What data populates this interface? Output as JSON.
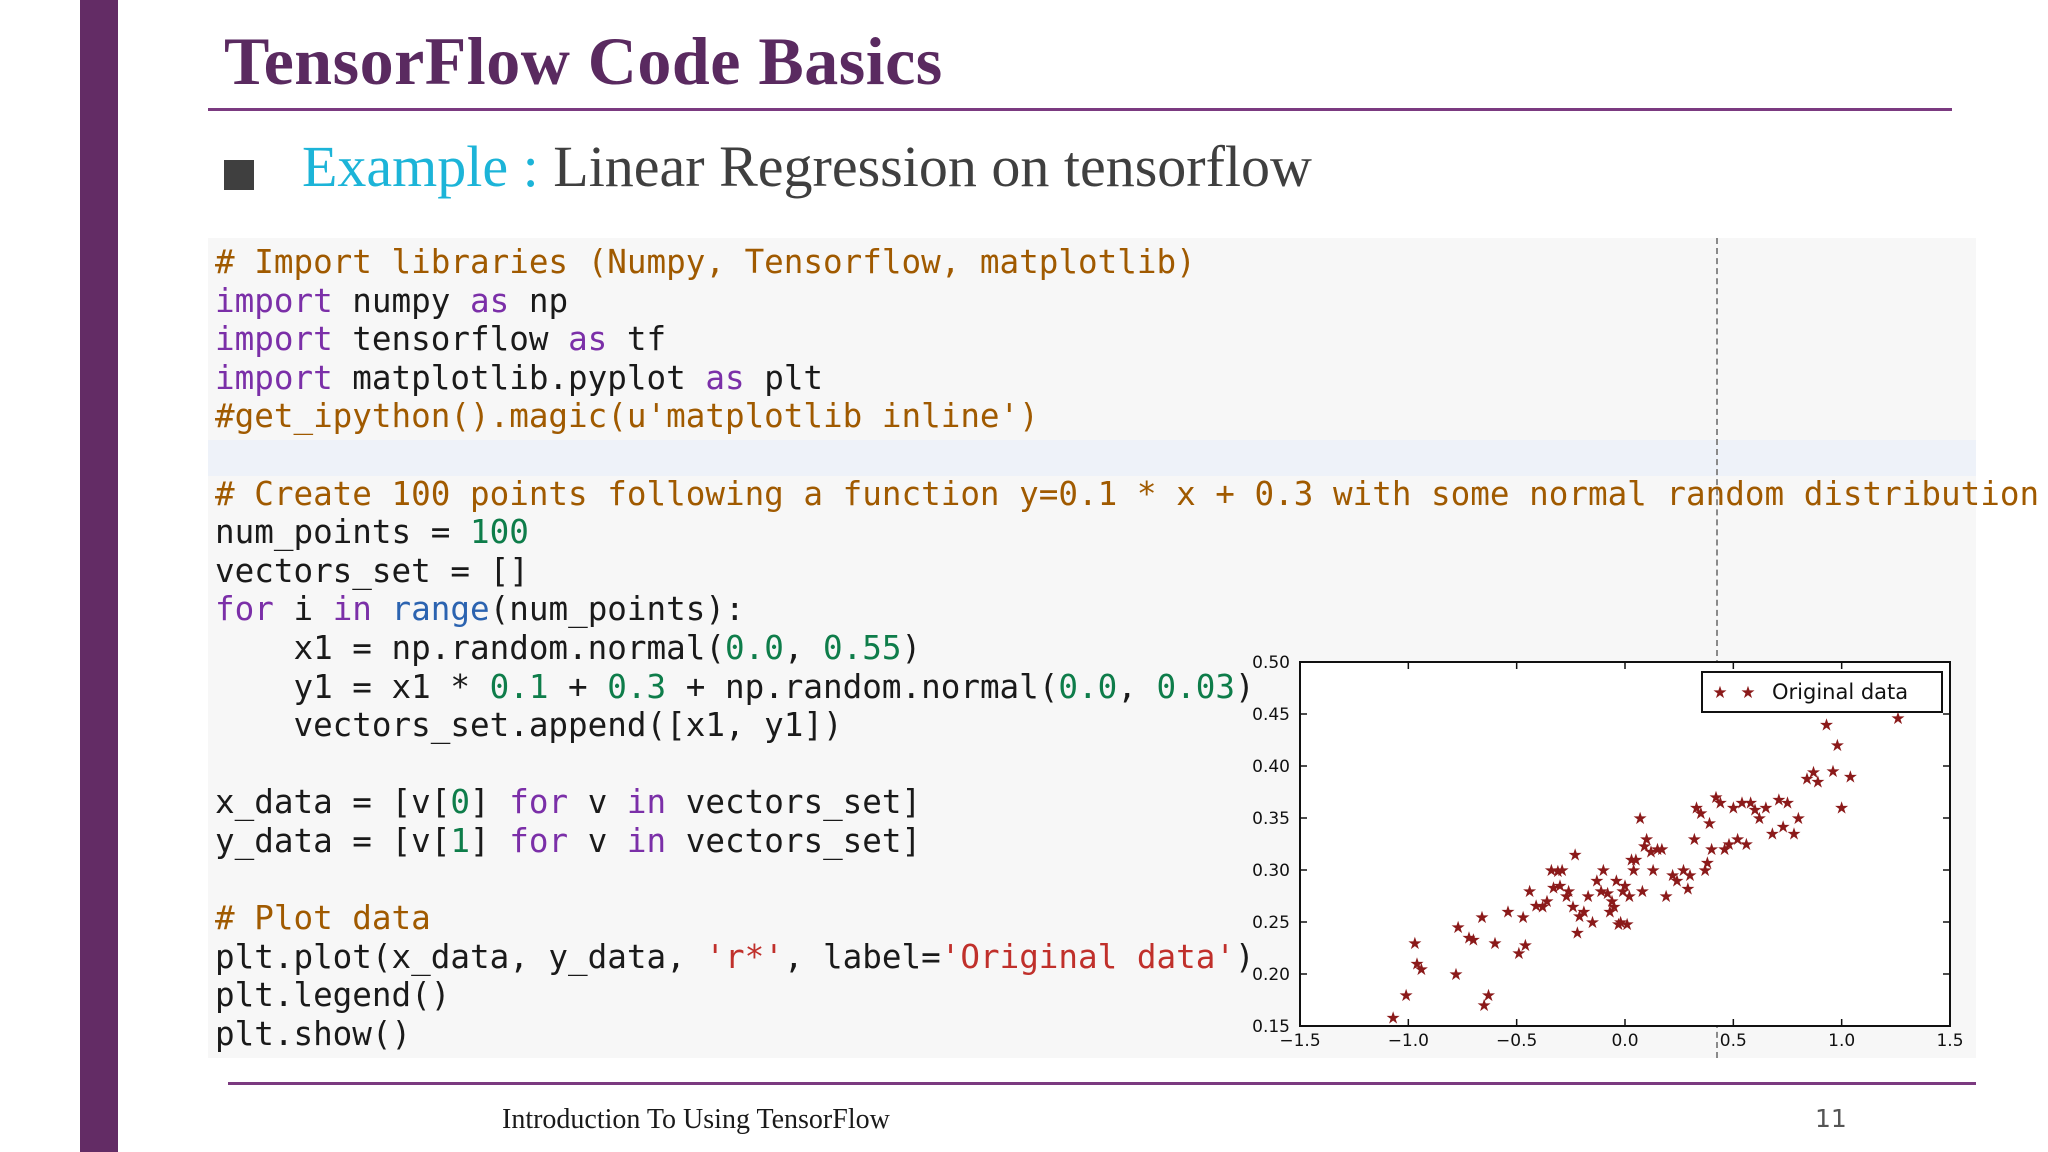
{
  "slide": {
    "title": "TensorFlow Code Basics",
    "bullet": {
      "highlight": "Example :",
      "text": " Linear Regression on tensorflow"
    },
    "footer": "Introduction To Using TensorFlow",
    "page_number": "11"
  },
  "code_lines": [
    [
      {
        "t": "# Import libraries (Numpy, Tensorflow, matplotlib)",
        "c": "cm"
      }
    ],
    [
      {
        "t": "import",
        "c": "kw"
      },
      {
        "t": " numpy "
      },
      {
        "t": "as",
        "c": "kw"
      },
      {
        "t": " np"
      }
    ],
    [
      {
        "t": "import",
        "c": "kw"
      },
      {
        "t": " tensorflow "
      },
      {
        "t": "as",
        "c": "kw"
      },
      {
        "t": " tf"
      }
    ],
    [
      {
        "t": "import",
        "c": "kw"
      },
      {
        "t": " matplotlib.pyplot "
      },
      {
        "t": "as",
        "c": "kw"
      },
      {
        "t": " plt"
      }
    ],
    [
      {
        "t": "#get_ipython().magic(u'matplotlib inline')",
        "c": "cm"
      }
    ],
    [],
    [
      {
        "t": "# Create 100 points following a function y=0.1 * x + 0.3 with some normal random distribution",
        "c": "cm"
      }
    ],
    [
      {
        "t": "num_points = "
      },
      {
        "t": "100",
        "c": "nm"
      }
    ],
    [
      {
        "t": "vectors_set = []"
      }
    ],
    [
      {
        "t": "for",
        "c": "kw"
      },
      {
        "t": " i "
      },
      {
        "t": "in",
        "c": "kw"
      },
      {
        "t": " "
      },
      {
        "t": "range",
        "c": "bi"
      },
      {
        "t": "(num_points):"
      }
    ],
    [
      {
        "t": "    x1 = np.random.normal("
      },
      {
        "t": "0.0",
        "c": "nm"
      },
      {
        "t": ", "
      },
      {
        "t": "0.55",
        "c": "nm"
      },
      {
        "t": ")"
      }
    ],
    [
      {
        "t": "    y1 = x1 * "
      },
      {
        "t": "0.1",
        "c": "nm"
      },
      {
        "t": " + "
      },
      {
        "t": "0.3",
        "c": "nm"
      },
      {
        "t": " + np.random.normal("
      },
      {
        "t": "0.0",
        "c": "nm"
      },
      {
        "t": ", "
      },
      {
        "t": "0.03",
        "c": "nm"
      },
      {
        "t": ")"
      }
    ],
    [
      {
        "t": "    vectors_set.append([x1, y1])"
      }
    ],
    [],
    [
      {
        "t": "x_data = [v["
      },
      {
        "t": "0",
        "c": "nm"
      },
      {
        "t": "] "
      },
      {
        "t": "for",
        "c": "kw"
      },
      {
        "t": " v "
      },
      {
        "t": "in",
        "c": "kw"
      },
      {
        "t": " vectors_set]"
      }
    ],
    [
      {
        "t": "y_data = [v["
      },
      {
        "t": "1",
        "c": "nm"
      },
      {
        "t": "] "
      },
      {
        "t": "for",
        "c": "kw"
      },
      {
        "t": " v "
      },
      {
        "t": "in",
        "c": "kw"
      },
      {
        "t": " vectors_set]"
      }
    ],
    [],
    [
      {
        "t": "# Plot data",
        "c": "cm"
      }
    ],
    [
      {
        "t": "plt.plot(x_data, y_data, "
      },
      {
        "t": "'r*'",
        "c": "st"
      },
      {
        "t": ", label="
      },
      {
        "t": "'Original data'",
        "c": "st"
      },
      {
        "t": ")"
      }
    ],
    [
      {
        "t": "plt.legend()"
      }
    ],
    [
      {
        "t": "plt.show()"
      }
    ]
  ],
  "chart_data": {
    "type": "scatter",
    "xlim": [
      -1.5,
      1.5
    ],
    "ylim": [
      0.15,
      0.5
    ],
    "xticks": [
      "−1.5",
      "−1.0",
      "−0.5",
      "0.0",
      "0.5",
      "1.0",
      "1.5"
    ],
    "yticks": [
      "0.15",
      "0.20",
      "0.25",
      "0.30",
      "0.35",
      "0.40",
      "0.45",
      "0.50"
    ],
    "xtick_values": [
      -1.5,
      -1.0,
      -0.5,
      0.0,
      0.5,
      1.0,
      1.5
    ],
    "ytick_values": [
      0.15,
      0.2,
      0.25,
      0.3,
      0.35,
      0.4,
      0.45,
      0.5
    ],
    "grid": false,
    "legend_position": "top-right",
    "marker_color": "#8b1a1a",
    "series": [
      {
        "name": "Original data",
        "points": [
          [
            -1.07,
            0.158
          ],
          [
            -1.01,
            0.18
          ],
          [
            -0.97,
            0.23
          ],
          [
            -0.96,
            0.21
          ],
          [
            -0.94,
            0.205
          ],
          [
            -0.78,
            0.2
          ],
          [
            -0.77,
            0.245
          ],
          [
            -0.72,
            0.235
          ],
          [
            -0.7,
            0.233
          ],
          [
            -0.66,
            0.255
          ],
          [
            -0.65,
            0.17
          ],
          [
            -0.63,
            0.18
          ],
          [
            -0.6,
            0.23
          ],
          [
            -0.54,
            0.26
          ],
          [
            -0.49,
            0.22
          ],
          [
            -0.47,
            0.255
          ],
          [
            -0.46,
            0.228
          ],
          [
            -0.44,
            0.28
          ],
          [
            -0.41,
            0.266
          ],
          [
            -0.38,
            0.265
          ],
          [
            -0.36,
            0.27
          ],
          [
            -0.34,
            0.3
          ],
          [
            -0.33,
            0.283
          ],
          [
            -0.31,
            0.299
          ],
          [
            -0.3,
            0.285
          ],
          [
            -0.29,
            0.3
          ],
          [
            -0.27,
            0.275
          ],
          [
            -0.26,
            0.28
          ],
          [
            -0.24,
            0.265
          ],
          [
            -0.23,
            0.315
          ],
          [
            -0.22,
            0.24
          ],
          [
            -0.21,
            0.256
          ],
          [
            -0.19,
            0.26
          ],
          [
            -0.17,
            0.275
          ],
          [
            -0.15,
            0.25
          ],
          [
            -0.13,
            0.29
          ],
          [
            -0.11,
            0.28
          ],
          [
            -0.1,
            0.3
          ],
          [
            -0.08,
            0.278
          ],
          [
            -0.07,
            0.26
          ],
          [
            -0.06,
            0.27
          ],
          [
            -0.05,
            0.265
          ],
          [
            -0.04,
            0.29
          ],
          [
            -0.03,
            0.248
          ],
          [
            -0.02,
            0.25
          ],
          [
            -0.01,
            0.28
          ],
          [
            0.0,
            0.285
          ],
          [
            0.01,
            0.248
          ],
          [
            0.02,
            0.275
          ],
          [
            0.03,
            0.31
          ],
          [
            0.04,
            0.3
          ],
          [
            0.05,
            0.31
          ],
          [
            0.07,
            0.35
          ],
          [
            0.08,
            0.28
          ],
          [
            0.09,
            0.323
          ],
          [
            0.1,
            0.33
          ],
          [
            0.12,
            0.318
          ],
          [
            0.13,
            0.3
          ],
          [
            0.15,
            0.32
          ],
          [
            0.17,
            0.32
          ],
          [
            0.19,
            0.275
          ],
          [
            0.22,
            0.295
          ],
          [
            0.24,
            0.29
          ],
          [
            0.27,
            0.3
          ],
          [
            0.29,
            0.282
          ],
          [
            0.3,
            0.295
          ],
          [
            0.32,
            0.33
          ],
          [
            0.33,
            0.36
          ],
          [
            0.35,
            0.355
          ],
          [
            0.37,
            0.3
          ],
          [
            0.38,
            0.307
          ],
          [
            0.39,
            0.345
          ],
          [
            0.4,
            0.32
          ],
          [
            0.42,
            0.37
          ],
          [
            0.44,
            0.365
          ],
          [
            0.46,
            0.32
          ],
          [
            0.48,
            0.325
          ],
          [
            0.5,
            0.36
          ],
          [
            0.52,
            0.33
          ],
          [
            0.54,
            0.365
          ],
          [
            0.56,
            0.325
          ],
          [
            0.58,
            0.365
          ],
          [
            0.6,
            0.358
          ],
          [
            0.62,
            0.35
          ],
          [
            0.65,
            0.36
          ],
          [
            0.68,
            0.335
          ],
          [
            0.71,
            0.368
          ],
          [
            0.73,
            0.342
          ],
          [
            0.75,
            0.365
          ],
          [
            0.78,
            0.335
          ],
          [
            0.8,
            0.35
          ],
          [
            0.84,
            0.388
          ],
          [
            0.87,
            0.394
          ],
          [
            0.89,
            0.385
          ],
          [
            0.93,
            0.44
          ],
          [
            0.96,
            0.395
          ],
          [
            0.98,
            0.42
          ],
          [
            1.0,
            0.36
          ],
          [
            1.04,
            0.39
          ],
          [
            1.26,
            0.446
          ]
        ]
      }
    ]
  }
}
